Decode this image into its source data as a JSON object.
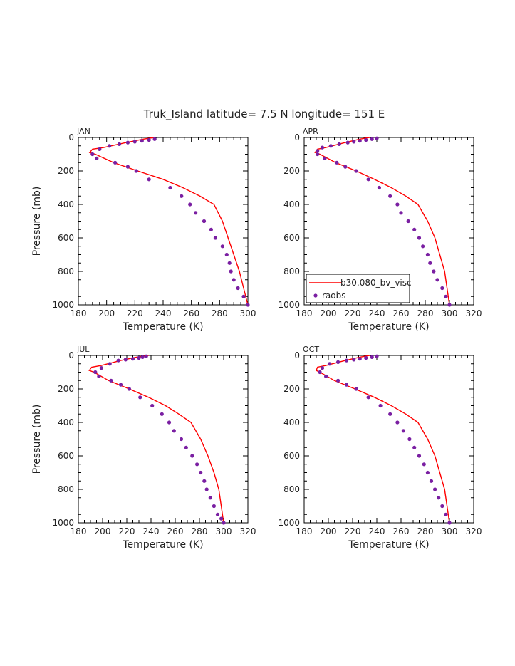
{
  "title": "Truk_Island  latitude= 7.5 N longitude= 151 E",
  "legend": {
    "position": "lower-left of APR panel",
    "model_label": "b30.080_bv_visc",
    "obs_label": "raobs"
  },
  "colors": {
    "model": "#ff0000",
    "obs": "#7a1fa2",
    "axes": "#000000"
  },
  "chart_data": [
    {
      "type": "line",
      "panel": "JAN",
      "label": "JAN",
      "xlabel": "Temperature (K)",
      "ylabel": "Pressure (mb)",
      "xlim": [
        180,
        300
      ],
      "ylim": [
        0,
        1000
      ],
      "y_inverted": true,
      "xticks": [
        180,
        200,
        220,
        240,
        260,
        280,
        300
      ],
      "yticks": [
        0,
        200,
        400,
        600,
        800,
        1000
      ],
      "series": [
        {
          "name": "b30.080_bv_visc",
          "kind": "line",
          "color": "#ff0000",
          "x": [
            234,
            226,
            214,
            198,
            190,
            188,
            192,
            205,
            222,
            240,
            254,
            266,
            276,
            282,
            286,
            290,
            294,
            297,
            300
          ],
          "y": [
            0,
            10,
            30,
            60,
            70,
            90,
            100,
            150,
            200,
            250,
            300,
            350,
            400,
            500,
            600,
            700,
            800,
            900,
            1000
          ]
        },
        {
          "name": "raobs",
          "kind": "scatter",
          "color": "#7a1fa2",
          "x": [
            234,
            230,
            225,
            220,
            215,
            209,
            202,
            195,
            190,
            193,
            206,
            215,
            221,
            230,
            245,
            253,
            259,
            263,
            269,
            274,
            277,
            282,
            285,
            287,
            288,
            290,
            293,
            297,
            300
          ],
          "y": [
            10,
            15,
            20,
            25,
            30,
            40,
            50,
            70,
            100,
            125,
            150,
            175,
            200,
            250,
            300,
            350,
            400,
            450,
            500,
            550,
            600,
            650,
            700,
            750,
            800,
            850,
            900,
            950,
            1000
          ]
        }
      ]
    },
    {
      "type": "line",
      "panel": "APR",
      "label": "APR",
      "xlabel": "Temperature (K)",
      "ylabel": "",
      "xlim": [
        180,
        320
      ],
      "ylim": [
        0,
        1000
      ],
      "y_inverted": true,
      "xticks": [
        180,
        200,
        220,
        240,
        260,
        280,
        300,
        320
      ],
      "yticks": [
        0,
        200,
        400,
        600,
        800,
        1000
      ],
      "series": [
        {
          "name": "b30.080_bv_visc",
          "kind": "line",
          "color": "#ff0000",
          "x": [
            234,
            226,
            214,
            198,
            191,
            189,
            193,
            206,
            223,
            238,
            252,
            264,
            274,
            282,
            288,
            292,
            296,
            298,
            300
          ],
          "y": [
            0,
            10,
            30,
            60,
            70,
            90,
            100,
            150,
            200,
            250,
            300,
            350,
            400,
            500,
            600,
            700,
            800,
            900,
            1000
          ]
        },
        {
          "name": "raobs",
          "kind": "scatter",
          "color": "#7a1fa2",
          "x": [
            240,
            236,
            231,
            226,
            221,
            216,
            209,
            202,
            195,
            191,
            191,
            197,
            207,
            214,
            223,
            233,
            242,
            251,
            257,
            260,
            266,
            271,
            275,
            278,
            282,
            284,
            287,
            290,
            294,
            297,
            300
          ],
          "y": [
            5,
            10,
            15,
            20,
            25,
            30,
            40,
            50,
            60,
            80,
            100,
            125,
            150,
            175,
            200,
            250,
            300,
            350,
            400,
            450,
            500,
            550,
            600,
            650,
            700,
            750,
            800,
            850,
            900,
            950,
            1000
          ]
        }
      ]
    },
    {
      "type": "line",
      "panel": "JUL",
      "label": "JUL",
      "xlabel": "Temperature (K)",
      "ylabel": "Pressure (mb)",
      "xlim": [
        180,
        320
      ],
      "ylim": [
        0,
        1000
      ],
      "y_inverted": true,
      "xticks": [
        180,
        200,
        220,
        240,
        260,
        280,
        300,
        320
      ],
      "yticks": [
        0,
        200,
        400,
        600,
        800,
        1000
      ],
      "series": [
        {
          "name": "b30.080_bv_visc",
          "kind": "line",
          "color": "#ff0000",
          "x": [
            238,
            228,
            215,
            199,
            191,
            189,
            193,
            205,
            222,
            238,
            252,
            263,
            273,
            281,
            287,
            292,
            296,
            298,
            300
          ],
          "y": [
            0,
            10,
            30,
            60,
            70,
            90,
            100,
            150,
            200,
            250,
            300,
            350,
            400,
            500,
            600,
            700,
            800,
            900,
            1000
          ]
        },
        {
          "name": "raobs",
          "kind": "scatter",
          "color": "#7a1fa2",
          "x": [
            236,
            233,
            230,
            225,
            219,
            213,
            206,
            199,
            194,
            197,
            207,
            215,
            222,
            231,
            241,
            249,
            255,
            259,
            265,
            269,
            274,
            278,
            281,
            284,
            286,
            289,
            292,
            295,
            298,
            300
          ],
          "y": [
            5,
            10,
            15,
            20,
            25,
            30,
            50,
            75,
            100,
            125,
            150,
            175,
            200,
            250,
            300,
            350,
            400,
            450,
            500,
            550,
            600,
            650,
            700,
            750,
            800,
            850,
            900,
            950,
            975,
            1000
          ]
        }
      ]
    },
    {
      "type": "line",
      "panel": "OCT",
      "label": "OCT",
      "xlabel": "Temperature (K)",
      "ylabel": "",
      "xlim": [
        180,
        320
      ],
      "ylim": [
        0,
        1000
      ],
      "y_inverted": true,
      "xticks": [
        180,
        200,
        220,
        240,
        260,
        280,
        300,
        320
      ],
      "yticks": [
        0,
        200,
        400,
        600,
        800,
        1000
      ],
      "series": [
        {
          "name": "b30.080_bv_visc",
          "kind": "line",
          "color": "#ff0000",
          "x": [
            234,
            226,
            214,
            198,
            191,
            190,
            193,
            205,
            222,
            238,
            252,
            264,
            274,
            282,
            288,
            292,
            296,
            298,
            300
          ],
          "y": [
            0,
            10,
            30,
            60,
            70,
            90,
            100,
            150,
            200,
            250,
            300,
            350,
            400,
            500,
            600,
            700,
            800,
            900,
            1000
          ]
        },
        {
          "name": "raobs",
          "kind": "scatter",
          "color": "#7a1fa2",
          "x": [
            240,
            236,
            231,
            226,
            221,
            215,
            208,
            201,
            195,
            193,
            198,
            208,
            215,
            223,
            233,
            243,
            251,
            257,
            262,
            267,
            271,
            275,
            279,
            282,
            285,
            288,
            291,
            294,
            297,
            300
          ],
          "y": [
            5,
            10,
            15,
            20,
            25,
            30,
            40,
            50,
            75,
            100,
            125,
            150,
            175,
            200,
            250,
            300,
            350,
            400,
            450,
            500,
            550,
            600,
            650,
            700,
            750,
            800,
            850,
            900,
            950,
            1000
          ]
        }
      ]
    }
  ]
}
